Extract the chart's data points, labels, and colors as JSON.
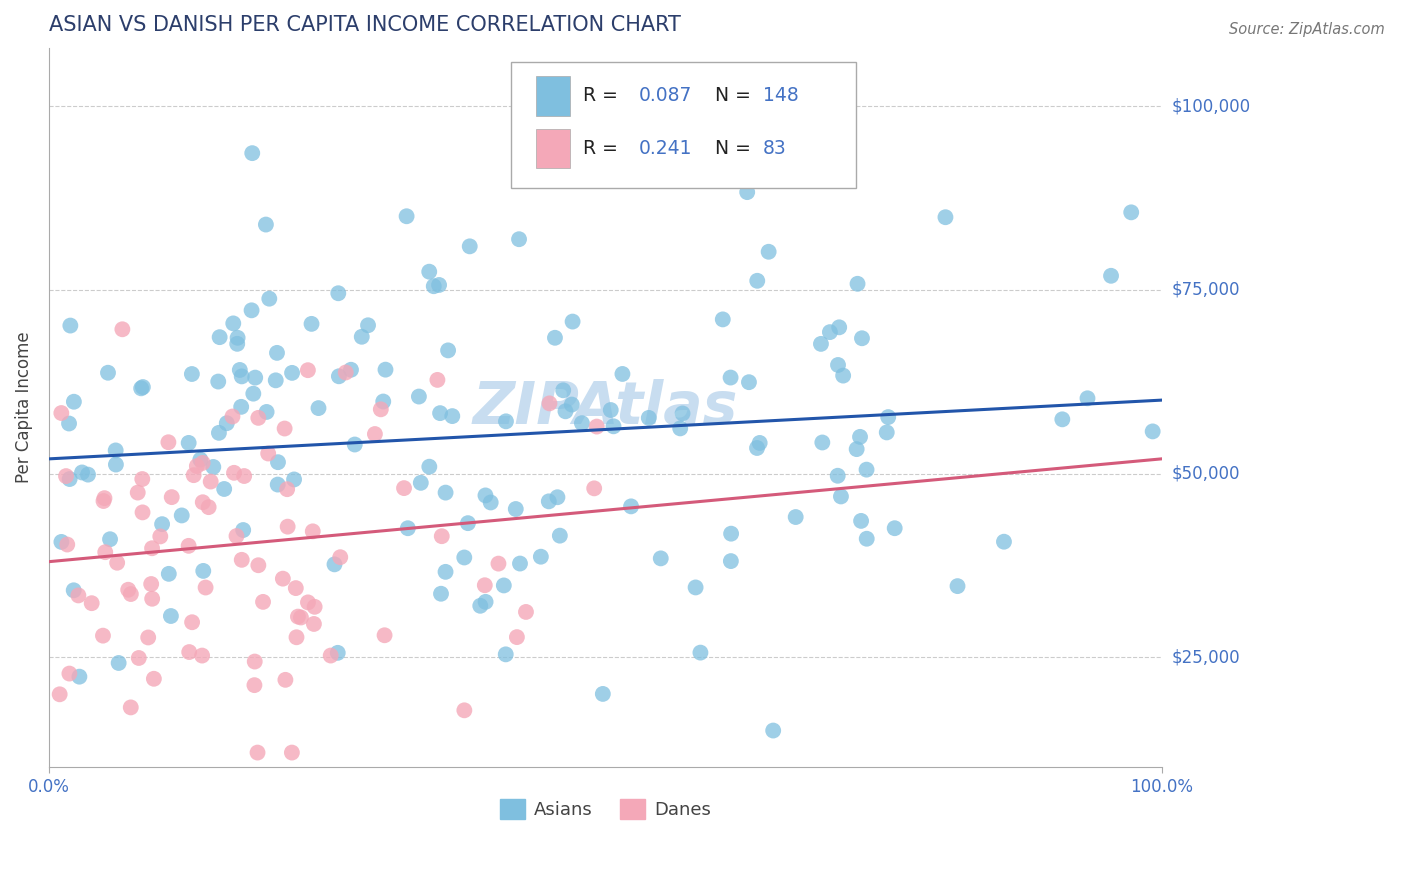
{
  "title": "ASIAN VS DANISH PER CAPITA INCOME CORRELATION CHART",
  "source": "Source: ZipAtlas.com",
  "ylabel": "Per Capita Income",
  "xlim": [
    0,
    1.0
  ],
  "ylim": [
    10000,
    108000
  ],
  "yticks": [
    25000,
    50000,
    75000,
    100000
  ],
  "ytick_labels": [
    "$25,000",
    "$50,000",
    "$75,000",
    "$100,000"
  ],
  "xticks": [
    0.0,
    1.0
  ],
  "xtick_labels": [
    "0.0%",
    "100.0%"
  ],
  "blue_color": "#7fbfdf",
  "pink_color": "#f4a8b8",
  "line_blue": "#2255aa",
  "line_pink": "#d45a7a",
  "text_blue": "#4472c4",
  "legend_r_asian": "0.087",
  "legend_n_asian": "148",
  "legend_r_danish": "0.241",
  "legend_n_danish": "83",
  "legend_label_asian": "Asians",
  "legend_label_danish": "Danes",
  "watermark_text": "ZIPAtlas",
  "watermark_color": "#c8ddf0",
  "title_color": "#2c3e6b",
  "source_color": "#777777",
  "grid_color": "#cccccc",
  "spine_color": "#aaaaaa"
}
